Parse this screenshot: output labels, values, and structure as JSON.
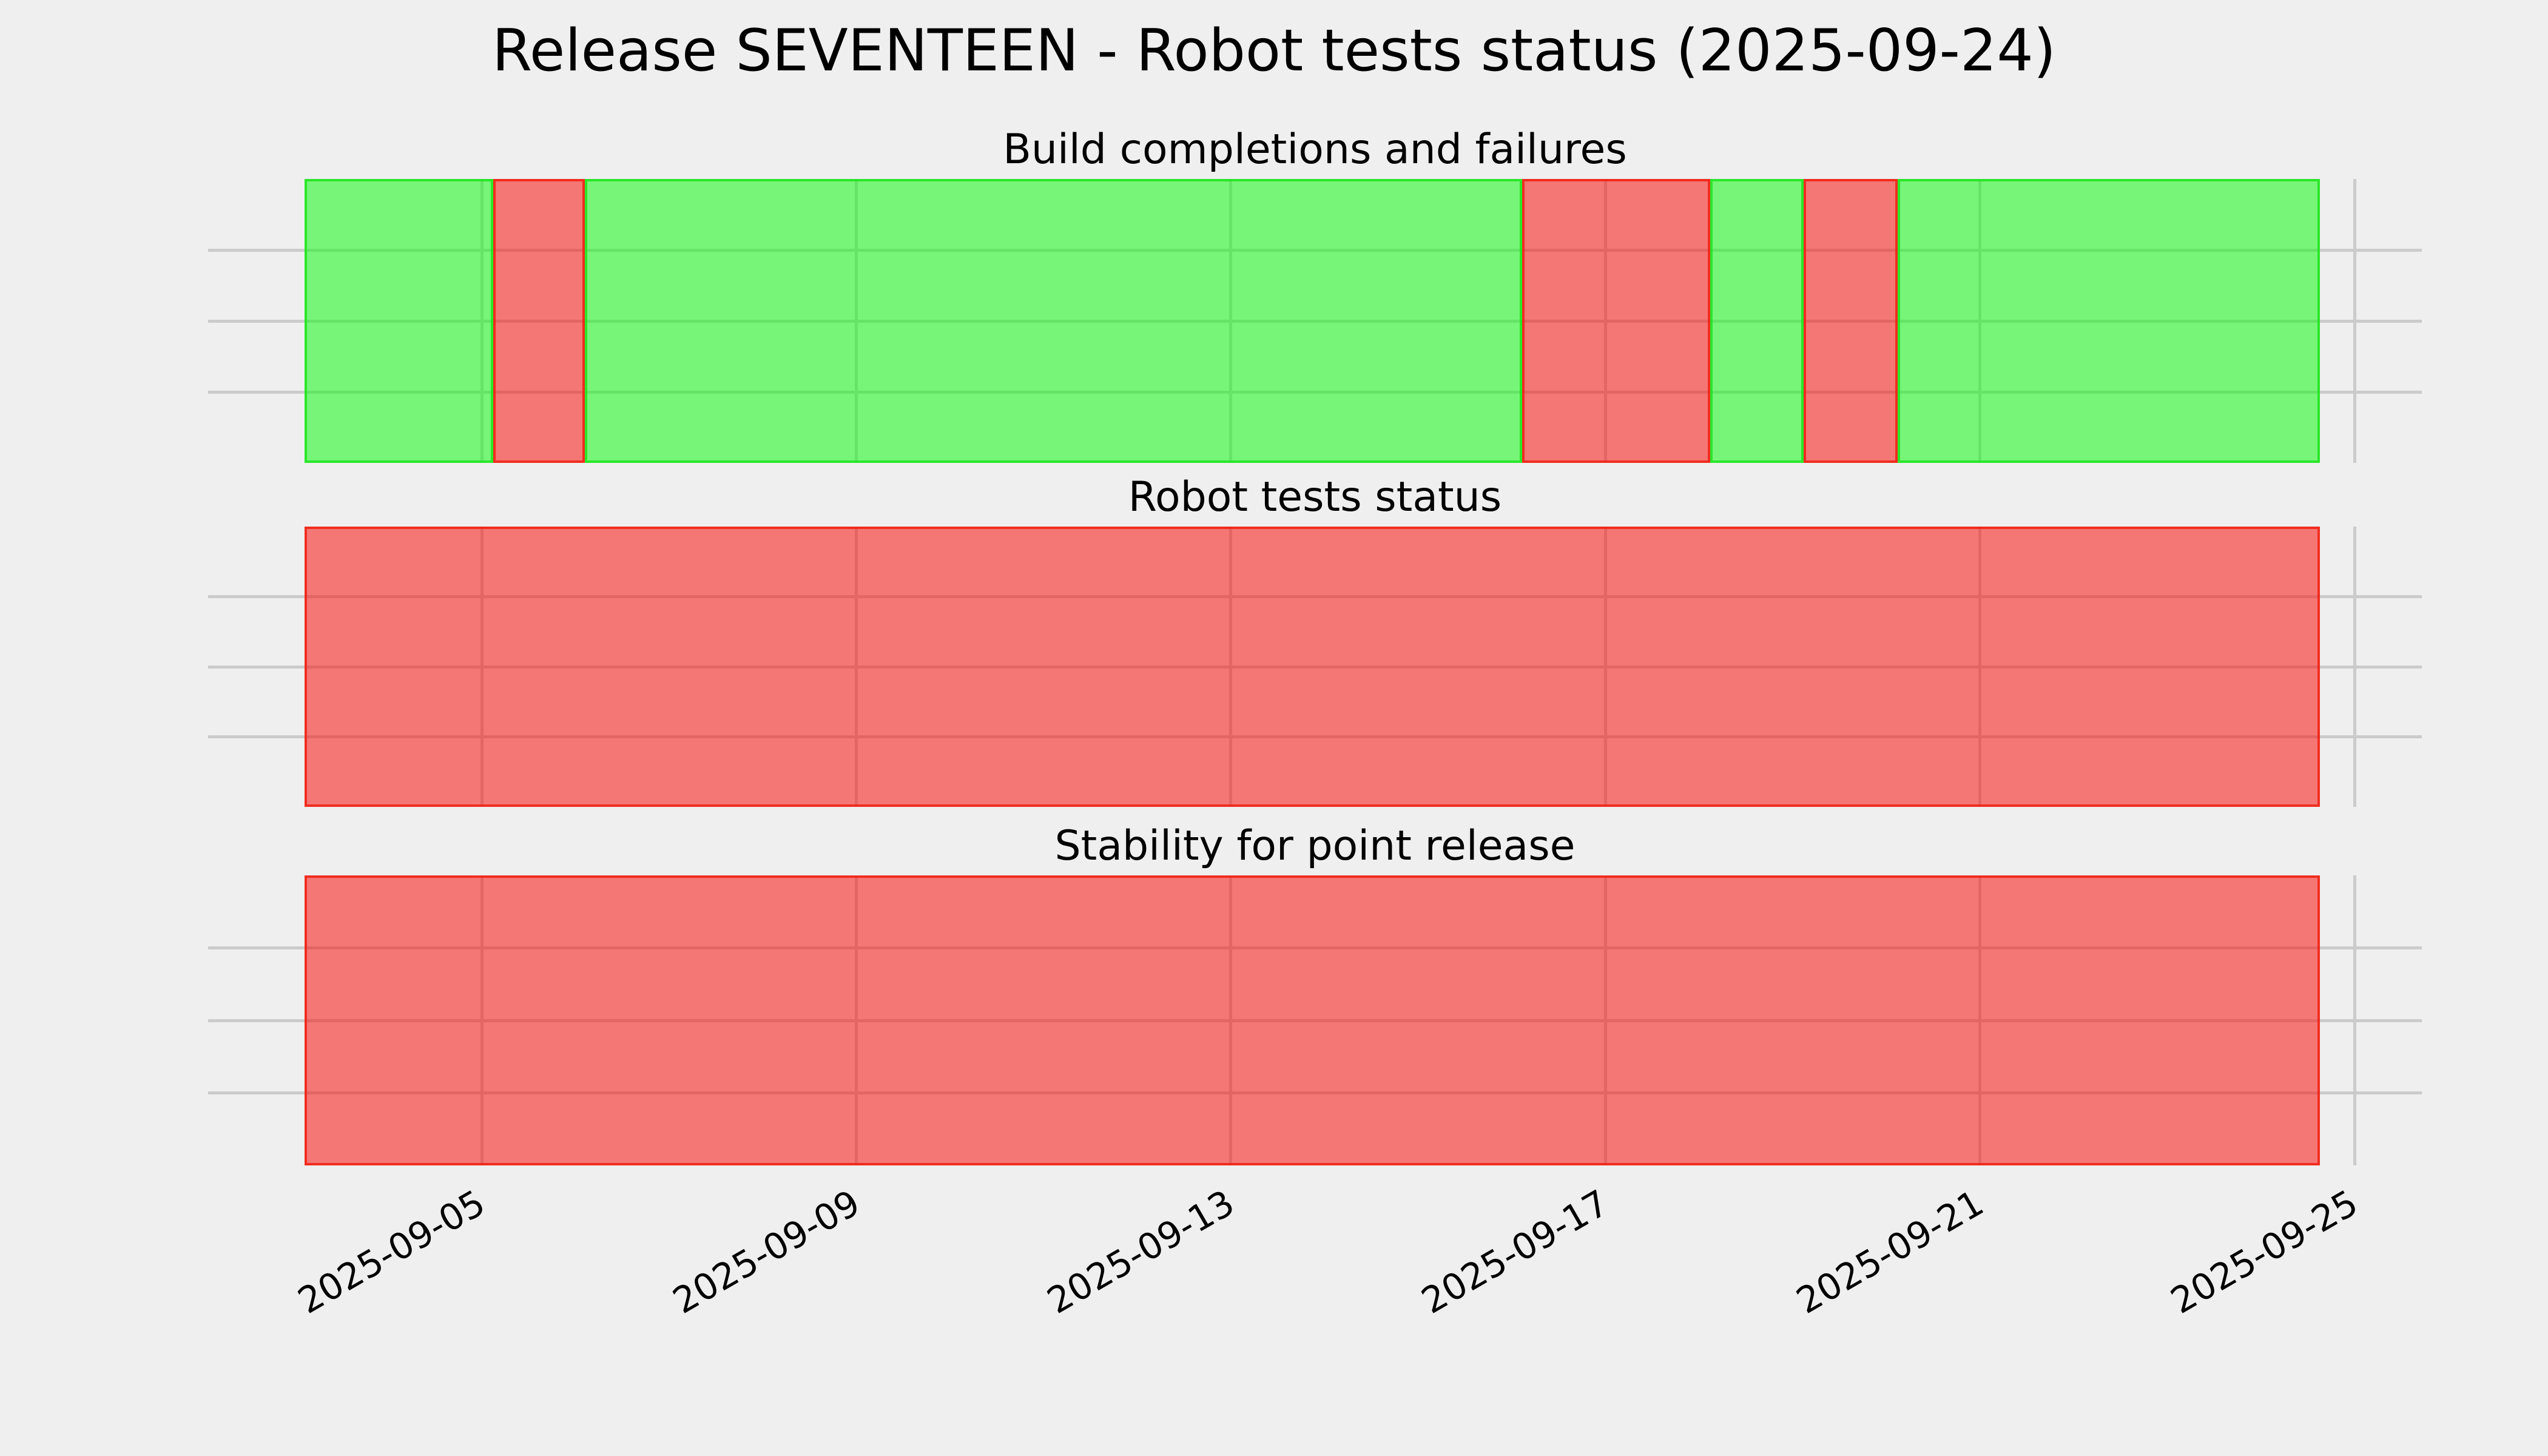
{
  "title": "Release SEVENTEEN - Robot tests status (2025-09-24)",
  "status_colors": {
    "success_hex": "#79f47b",
    "failure_hex": "#f47876",
    "success_fill": "rgba(10,252,12,0.52)",
    "success_edge": "rgba(28,228,28,0.85)",
    "failure_fill": "rgba(249,10,8,0.52)",
    "failure_edge": "rgba(240,32,16,0.85)",
    "grid": "#cbcbcb",
    "background": "#efefef",
    "text": "#000000"
  },
  "chart_data": {
    "type": "status-timeline",
    "title": "Release SEVENTEEN - Robot tests status (2025-09-24)",
    "grid": "on",
    "legend": "none",
    "rows_per_panel": 4,
    "x_axis": {
      "tick_labels": [
        "2025-09-05",
        "2025-09-09",
        "2025-09-13",
        "2025-09-17",
        "2025-09-21",
        "2025-09-25"
      ],
      "tick_days": [
        4,
        8,
        12,
        16,
        20,
        24
      ],
      "data_range_days": [
        2.11,
        23.63
      ],
      "label_rotation_deg": 30
    },
    "panels": [
      {
        "title": "Build completions and failures",
        "segments": [
          {
            "status": "success",
            "start": "2025-09-03",
            "end": "2025-09-05",
            "start_day": 2.11,
            "end_day": 4.12
          },
          {
            "status": "failure",
            "start": "2025-09-05",
            "end": "2025-09-06",
            "start_day": 4.12,
            "end_day": 5.1
          },
          {
            "status": "success",
            "start": "2025-09-06",
            "end": "2025-09-16",
            "start_day": 5.1,
            "end_day": 15.11
          },
          {
            "status": "failure",
            "start": "2025-09-16",
            "end": "2025-09-18",
            "start_day": 15.11,
            "end_day": 17.12
          },
          {
            "status": "success",
            "start": "2025-09-18",
            "end": "2025-09-19",
            "start_day": 17.12,
            "end_day": 18.12
          },
          {
            "status": "failure",
            "start": "2025-09-19",
            "end": "2025-09-20",
            "start_day": 18.12,
            "end_day": 19.12
          },
          {
            "status": "success",
            "start": "2025-09-20",
            "end": "2025-09-24",
            "start_day": 19.12,
            "end_day": 23.63
          }
        ]
      },
      {
        "title": "Robot tests status",
        "segments": [
          {
            "status": "failure",
            "start": "2025-09-03",
            "end": "2025-09-24",
            "start_day": 2.11,
            "end_day": 23.63
          }
        ]
      },
      {
        "title": "Stability for point release",
        "segments": [
          {
            "status": "failure",
            "start": "2025-09-03",
            "end": "2025-09-24",
            "start_day": 2.11,
            "end_day": 23.63
          }
        ]
      }
    ]
  }
}
